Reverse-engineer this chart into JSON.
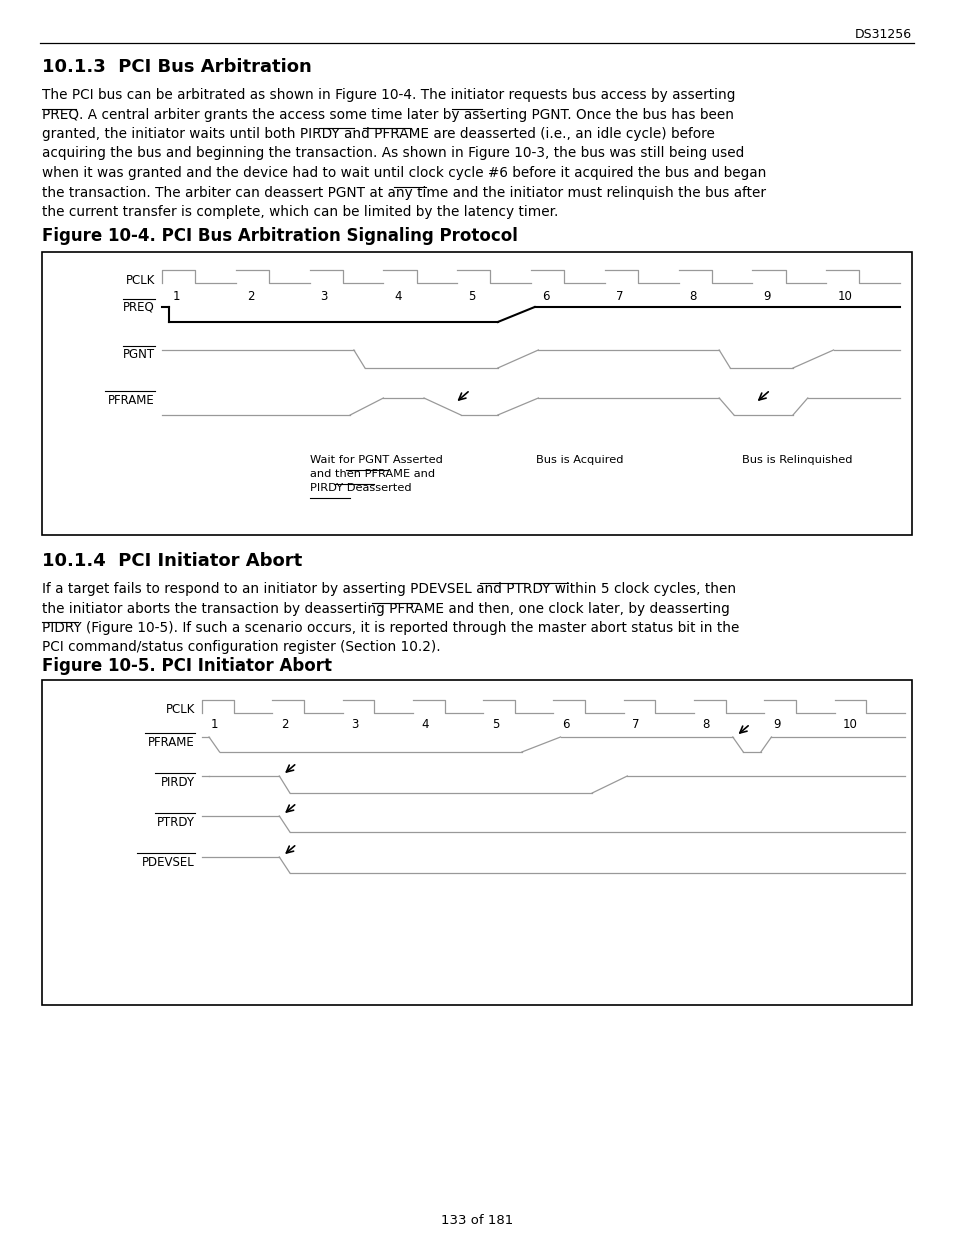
{
  "page_header": "DS31256",
  "page_footer": "133 of 181",
  "section1_title": "10.1.3  PCI Bus Arbitration",
  "fig1_title": "Figure 10-4. PCI Bus Arbitration Signaling Protocol",
  "section2_title": "10.1.4  PCI Initiator Abort",
  "fig2_title": "Figure 10-5. PCI Initiator Abort",
  "background_color": "#ffffff",
  "clk_color": "#999999",
  "dark_color": "#000000",
  "link_color": "#0000cc"
}
